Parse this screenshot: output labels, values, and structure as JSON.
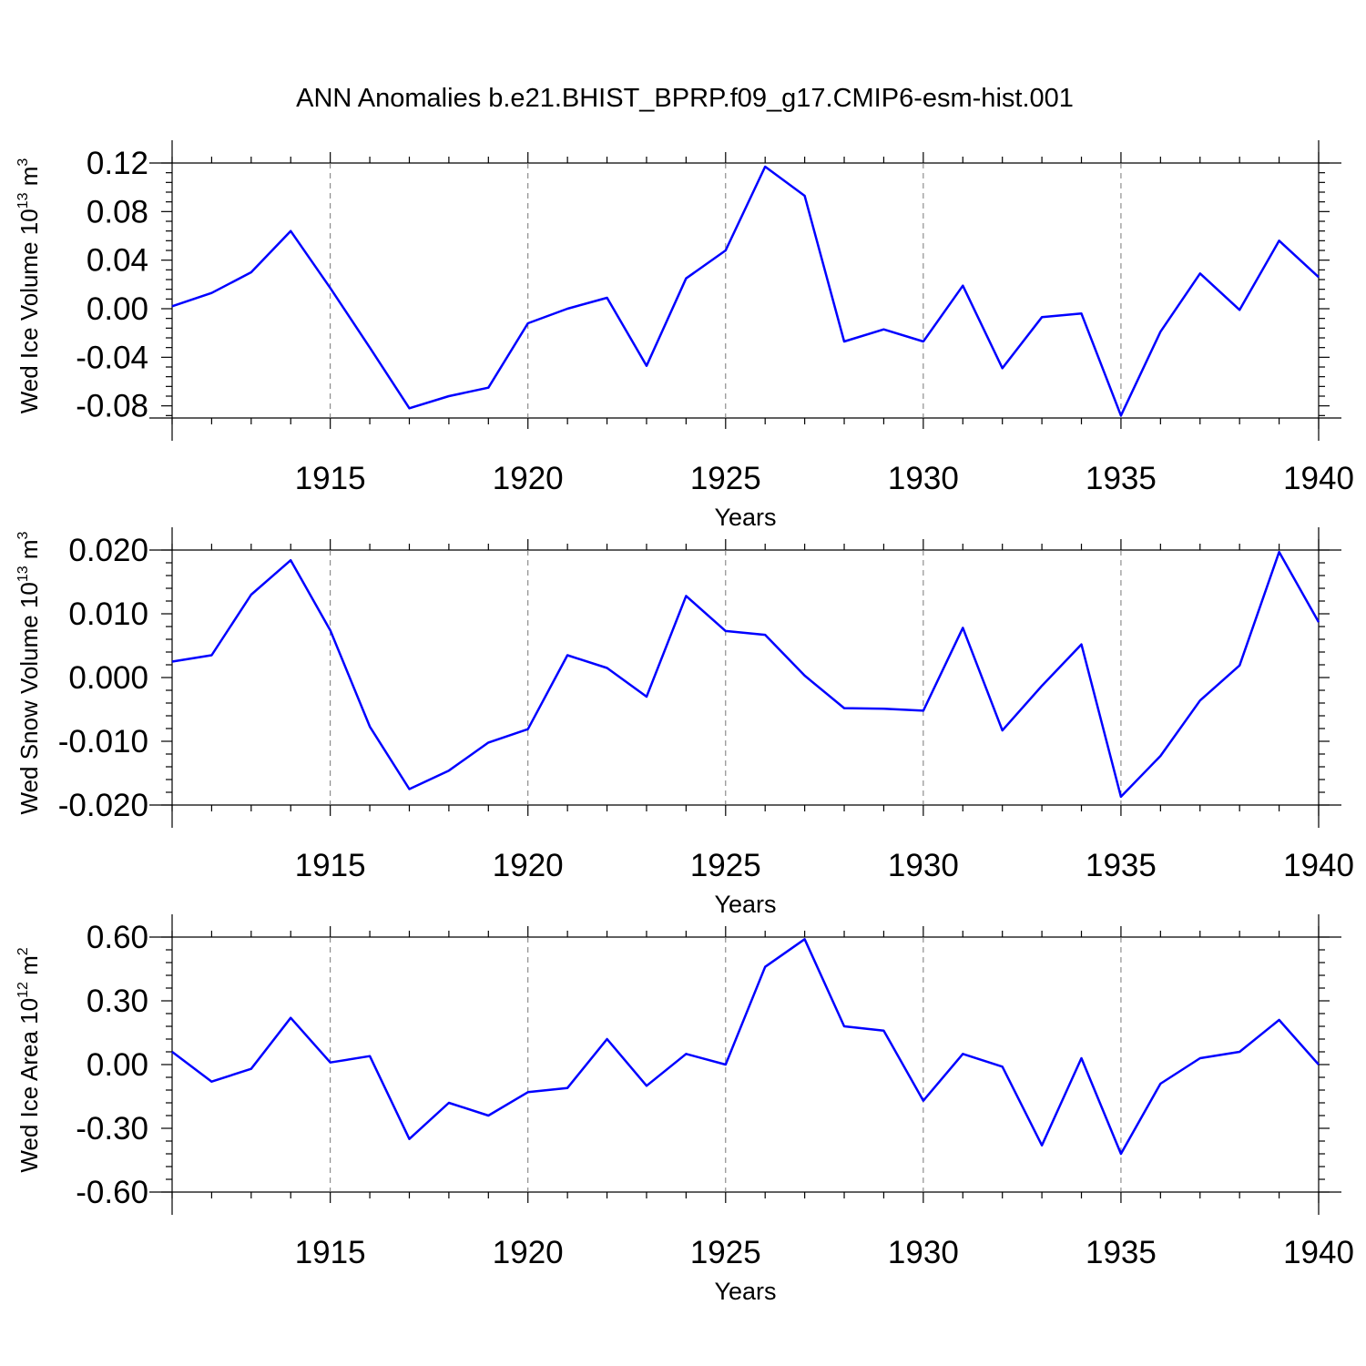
{
  "title": "ANN Anomalies b.e21.BHIST_BPRP.f09_g17.CMIP6-esm-hist.001",
  "line_color": "#0000ff",
  "chart_data": [
    {
      "type": "line",
      "ylabel": "Wed Ice Volume 10",
      "ylabel_exp": "13",
      "ylabel_unit": " m",
      "ylabel_unit_exp": "3",
      "xlabel": "Years",
      "xlim": [
        1911,
        1940
      ],
      "ylim": [
        -0.09,
        0.12
      ],
      "yticks": [
        -0.08,
        -0.04,
        0.0,
        0.04,
        0.08,
        0.12
      ],
      "ytick_labels": [
        "-0.08",
        "-0.04",
        "0.00",
        "0.04",
        "0.08",
        "0.12"
      ],
      "xticks": [
        1915,
        1920,
        1925,
        1930,
        1935,
        1940
      ],
      "xtick_labels": [
        "1915",
        "1920",
        "1925",
        "1930",
        "1935",
        "1940"
      ],
      "x": [
        1911,
        1912,
        1913,
        1914,
        1915,
        1916,
        1917,
        1918,
        1919,
        1920,
        1921,
        1922,
        1923,
        1924,
        1925,
        1926,
        1927,
        1928,
        1929,
        1930,
        1931,
        1932,
        1933,
        1934,
        1935,
        1936,
        1937,
        1938,
        1939,
        1940
      ],
      "values": [
        0.002,
        0.013,
        0.03,
        0.064,
        0.017,
        -0.032,
        -0.082,
        -0.072,
        -0.065,
        -0.012,
        0.0,
        0.009,
        -0.047,
        0.025,
        0.048,
        0.117,
        0.093,
        -0.027,
        -0.017,
        -0.027,
        0.019,
        -0.049,
        -0.007,
        -0.004,
        -0.088,
        -0.019,
        0.029,
        -0.001,
        0.056,
        0.026
      ]
    },
    {
      "type": "line",
      "ylabel": "Wed Snow Volume 10",
      "ylabel_exp": "13",
      "ylabel_unit": " m",
      "ylabel_unit_exp": "3",
      "xlabel": "Years",
      "xlim": [
        1911,
        1940
      ],
      "ylim": [
        -0.02,
        0.02
      ],
      "yticks": [
        -0.02,
        -0.01,
        0.0,
        0.01,
        0.02
      ],
      "ytick_labels": [
        "-0.020",
        "-0.010",
        "0.000",
        "0.010",
        "0.020"
      ],
      "xticks": [
        1915,
        1920,
        1925,
        1930,
        1935,
        1940
      ],
      "xtick_labels": [
        "1915",
        "1920",
        "1925",
        "1930",
        "1935",
        "1940"
      ],
      "x": [
        1911,
        1912,
        1913,
        1914,
        1915,
        1916,
        1917,
        1918,
        1919,
        1920,
        1921,
        1922,
        1923,
        1924,
        1925,
        1926,
        1927,
        1928,
        1929,
        1930,
        1931,
        1932,
        1933,
        1934,
        1935,
        1936,
        1937,
        1938,
        1939,
        1940
      ],
      "values": [
        0.0025,
        0.0035,
        0.013,
        0.0184,
        0.0074,
        -0.0077,
        -0.0175,
        -0.0146,
        -0.0102,
        -0.0081,
        0.0035,
        0.0015,
        -0.003,
        0.0128,
        0.0073,
        0.0067,
        0.0003,
        -0.0048,
        -0.0049,
        -0.0052,
        0.0078,
        -0.0083,
        -0.0013,
        0.0052,
        -0.0187,
        -0.0123,
        -0.0036,
        0.0019,
        0.0197,
        0.0087
      ]
    },
    {
      "type": "line",
      "ylabel": "Wed Ice Area 10",
      "ylabel_exp": "12",
      "ylabel_unit": " m",
      "ylabel_unit_exp": "2",
      "xlabel": "Years",
      "xlim": [
        1911,
        1940
      ],
      "ylim": [
        -0.6,
        0.6
      ],
      "yticks": [
        -0.6,
        -0.3,
        0.0,
        0.3,
        0.6
      ],
      "ytick_labels": [
        "-0.60",
        "-0.30",
        "0.00",
        "0.30",
        "0.60"
      ],
      "xticks": [
        1915,
        1920,
        1925,
        1930,
        1935,
        1940
      ],
      "xtick_labels": [
        "1915",
        "1920",
        "1925",
        "1930",
        "1935",
        "1940"
      ],
      "x": [
        1911,
        1912,
        1913,
        1914,
        1915,
        1916,
        1917,
        1918,
        1919,
        1920,
        1921,
        1922,
        1923,
        1924,
        1925,
        1926,
        1927,
        1928,
        1929,
        1930,
        1931,
        1932,
        1933,
        1934,
        1935,
        1936,
        1937,
        1938,
        1939,
        1940
      ],
      "values": [
        0.06,
        -0.08,
        -0.02,
        0.22,
        0.01,
        0.04,
        -0.35,
        -0.18,
        -0.24,
        -0.13,
        -0.11,
        0.12,
        -0.1,
        0.05,
        0.0,
        0.46,
        0.59,
        0.18,
        0.16,
        -0.17,
        0.05,
        -0.01,
        -0.38,
        0.03,
        -0.42,
        -0.09,
        0.03,
        0.06,
        0.21,
        0.0
      ]
    }
  ]
}
